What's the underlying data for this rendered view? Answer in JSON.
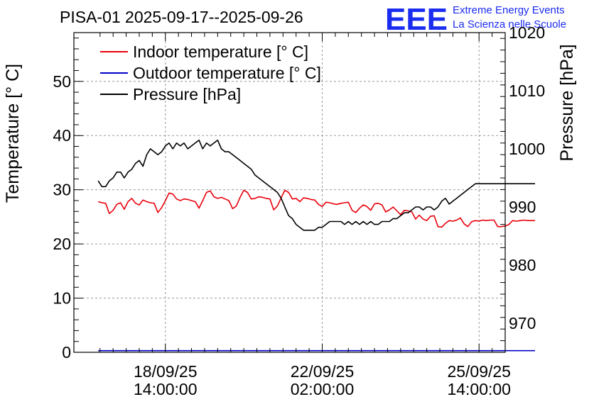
{
  "header": {
    "title": "PISA-01 2025-09-17--2025-09-26",
    "logo_text": "EEE",
    "org_line1": "Extreme Energy Events",
    "org_line2": "La Scienza nelle Scuole"
  },
  "colors": {
    "indoor": "#e8000b",
    "outdoor": "#0000c8",
    "pressure": "#000000",
    "logo": "#1a2cf0",
    "grid": "#999999"
  },
  "chart_data": {
    "type": "line",
    "title": "PISA-01 2025-09-17--2025-09-26",
    "ylabel": "Temperature [° C]",
    "ylabel_right": "Pressure [hPa]",
    "x_unit": "hours since 2025-09-17 00:00",
    "xlim": [
      -11,
      220
    ],
    "ylim": [
      0,
      59
    ],
    "ylim_right": [
      965,
      1020
    ],
    "grid": true,
    "legend_placement": "top-left",
    "x_ticks": [
      {
        "x": 38,
        "line1": "18/09/25",
        "line2": "14:00:00"
      },
      {
        "x": 122,
        "line1": "22/09/25",
        "line2": "02:00:00"
      },
      {
        "x": 206,
        "line1": "25/09/25",
        "line2": "14:00:00"
      }
    ],
    "y_ticks": [
      "0",
      "10",
      "20",
      "30",
      "40",
      "50"
    ],
    "y_ticks_right": [
      "970",
      "980",
      "990",
      "1000",
      "1010",
      "1020"
    ],
    "series": [
      {
        "name": "Indoor temperature [° C]",
        "axis": "left",
        "x": [
          2,
          4,
          6,
          8,
          10,
          12,
          14,
          16,
          18,
          20,
          22,
          24,
          26,
          28,
          30,
          32,
          34,
          36,
          38,
          40,
          42,
          44,
          46,
          48,
          50,
          52,
          54,
          56,
          58,
          60,
          62,
          64,
          66,
          68,
          70,
          72,
          74,
          76,
          78,
          80,
          82,
          84,
          86,
          88,
          90,
          92,
          94,
          96,
          98,
          100,
          102,
          104,
          106,
          108,
          110,
          112,
          114,
          116,
          118,
          120,
          122,
          124,
          126,
          128,
          130,
          132,
          134,
          136,
          138,
          140,
          142,
          144,
          146,
          148,
          150,
          152,
          154,
          156,
          158,
          160,
          162,
          164,
          166,
          168,
          170,
          172,
          174,
          176,
          178,
          180,
          182,
          184,
          186,
          188,
          190,
          192,
          194,
          196,
          198,
          200,
          202,
          204,
          206,
          208,
          210,
          212,
          214,
          216,
          218,
          220,
          222,
          224,
          226,
          228,
          230,
          232,
          234,
          236
        ],
        "y": [
          27.8,
          27.6,
          27.5,
          25.6,
          26.2,
          27.3,
          27.6,
          26.4,
          27.8,
          28.4,
          27.5,
          27.2,
          28.1,
          27.8,
          27.6,
          27.5,
          25.8,
          26.7,
          28,
          29.4,
          29.2,
          28.3,
          28,
          28.3,
          28.2,
          28,
          27.8,
          26.6,
          28,
          29.5,
          29.8,
          28.7,
          28.4,
          28.6,
          28.3,
          28,
          26.5,
          27,
          28.6,
          29.9,
          29.5,
          28.3,
          28.4,
          28.7,
          28.6,
          28.4,
          28.3,
          26.3,
          27,
          28.5,
          29.9,
          29.5,
          28.3,
          28.4,
          27.8,
          28.5,
          28.4,
          28.2,
          28.1,
          27.3,
          26.9,
          27.7,
          27.6,
          27.4,
          27.3,
          27.5,
          27.6,
          27.7,
          26.2,
          25.8,
          26.6,
          27.2,
          26.9,
          26.2,
          27.4,
          27.5,
          27.2,
          25.9,
          26.3,
          26.8,
          26.1,
          25.4,
          26.2,
          26.1,
          25.9,
          24.6,
          25.3,
          24.6,
          24.3,
          25.1,
          25.2,
          23.2,
          23.1,
          23.8,
          24.3,
          24.2,
          24.4,
          24.8,
          23.7,
          23.2,
          24.1,
          24.3,
          24.2,
          24.4,
          24.3,
          24.4,
          24.4,
          23.2,
          23.2,
          23.3,
          23.6,
          24.3,
          24.2,
          24.3,
          24.4,
          24.3,
          24.3,
          24.3
        ]
      },
      {
        "name": "Outdoor temperature [° C]",
        "axis": "left",
        "x": [
          2,
          236
        ],
        "y": [
          0.3,
          0.3
        ]
      },
      {
        "name": "Pressure [hPa]",
        "axis": "right",
        "x": [
          2,
          4,
          6,
          8,
          10,
          12,
          14,
          16,
          18,
          20,
          22,
          24,
          26,
          28,
          30,
          32,
          34,
          36,
          38,
          40,
          42,
          44,
          46,
          48,
          50,
          52,
          54,
          56,
          58,
          60,
          62,
          64,
          66,
          68,
          70,
          72,
          74,
          76,
          78,
          80,
          82,
          84,
          86,
          88,
          90,
          92,
          94,
          96,
          98,
          100,
          102,
          104,
          106,
          108,
          110,
          112,
          114,
          116,
          118,
          120,
          122,
          124,
          126,
          128,
          130,
          132,
          134,
          136,
          138,
          140,
          142,
          144,
          146,
          148,
          150,
          152,
          154,
          156,
          158,
          160,
          162,
          164,
          166,
          168,
          170,
          172,
          174,
          176,
          178,
          180,
          182,
          184,
          186,
          188,
          190,
          192,
          194,
          196,
          198,
          200,
          202,
          204,
          206,
          208,
          210,
          212,
          214,
          216,
          218,
          220,
          222,
          224,
          226,
          228,
          230,
          232,
          234,
          236
        ],
        "y": [
          994.5,
          993.5,
          993.5,
          994.5,
          995,
          996,
          996,
          995,
          996,
          996.5,
          997.5,
          998,
          997,
          999,
          1000,
          999.5,
          999,
          999.5,
          1000.5,
          1001,
          1000,
          1001,
          1000.5,
          1001,
          1000,
          1000.5,
          1001,
          1001.5,
          1000,
          1001,
          1000.5,
          1001,
          1001.5,
          1000,
          999.5,
          999.5,
          999,
          998.5,
          998,
          997.5,
          997,
          996.5,
          995.5,
          995,
          994.5,
          994,
          993.5,
          993,
          992.5,
          991.5,
          990,
          988.5,
          988,
          987,
          986.5,
          986,
          986,
          986,
          986,
          986.5,
          986.5,
          987,
          987.5,
          987.5,
          987.5,
          987.5,
          987,
          987.5,
          987,
          987.5,
          987,
          987.5,
          987,
          987.5,
          987,
          987,
          987.5,
          987.5,
          987.5,
          988,
          988,
          988.5,
          989,
          989,
          989.5,
          990,
          990,
          989.5,
          990,
          990,
          989.5,
          990,
          991,
          991.5,
          990.5,
          991,
          991.5,
          992,
          992.5,
          993,
          993.5,
          994,
          994,
          994,
          994,
          994,
          994,
          994,
          994,
          994,
          994,
          994,
          994,
          994,
          994,
          994,
          994,
          994
        ]
      }
    ]
  }
}
